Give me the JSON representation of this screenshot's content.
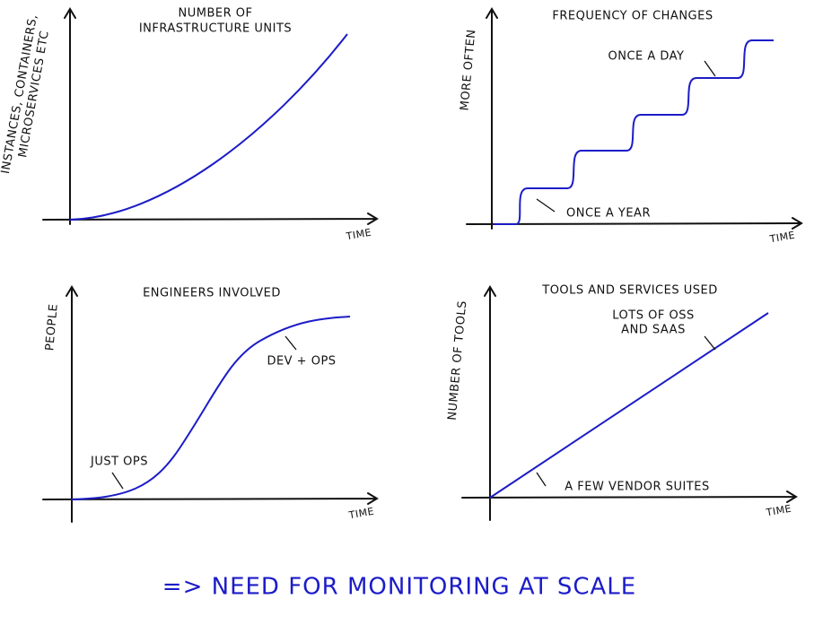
{
  "panels": [
    {
      "title_lines": [
        "NUMBER OF",
        "INFRASTRUCTURE UNITS"
      ],
      "ylabel_lines": [
        "INSTANCES, CONTAINERS,",
        "MICROSERVICES ETC"
      ],
      "xlabel": "TIME",
      "annotations": []
    },
    {
      "title_lines": [
        "FREQUENCY OF CHANGES"
      ],
      "ylabel_lines": [
        "MORE OFTEN"
      ],
      "xlabel": "TIME",
      "annotations": [
        [
          "ONCE A DAY"
        ],
        [
          "ONCE A YEAR"
        ]
      ]
    },
    {
      "title_lines": [
        "ENGINEERS INVOLVED"
      ],
      "ylabel_lines": [
        "PEOPLE"
      ],
      "xlabel": "TIME",
      "annotations": [
        [
          "JUST OPS"
        ],
        [
          "DEV + OPS"
        ]
      ]
    },
    {
      "title_lines": [
        "TOOLS AND SERVICES USED"
      ],
      "ylabel_lines": [
        "NUMBER OF TOOLS"
      ],
      "xlabel": "TIME",
      "annotations": [
        [
          "LOTS OF OSS",
          "AND SAAS"
        ],
        [
          "A FEW VENDOR SUITES"
        ]
      ]
    }
  ],
  "footer": "=> NEED FOR MONITORING AT SCALE"
}
